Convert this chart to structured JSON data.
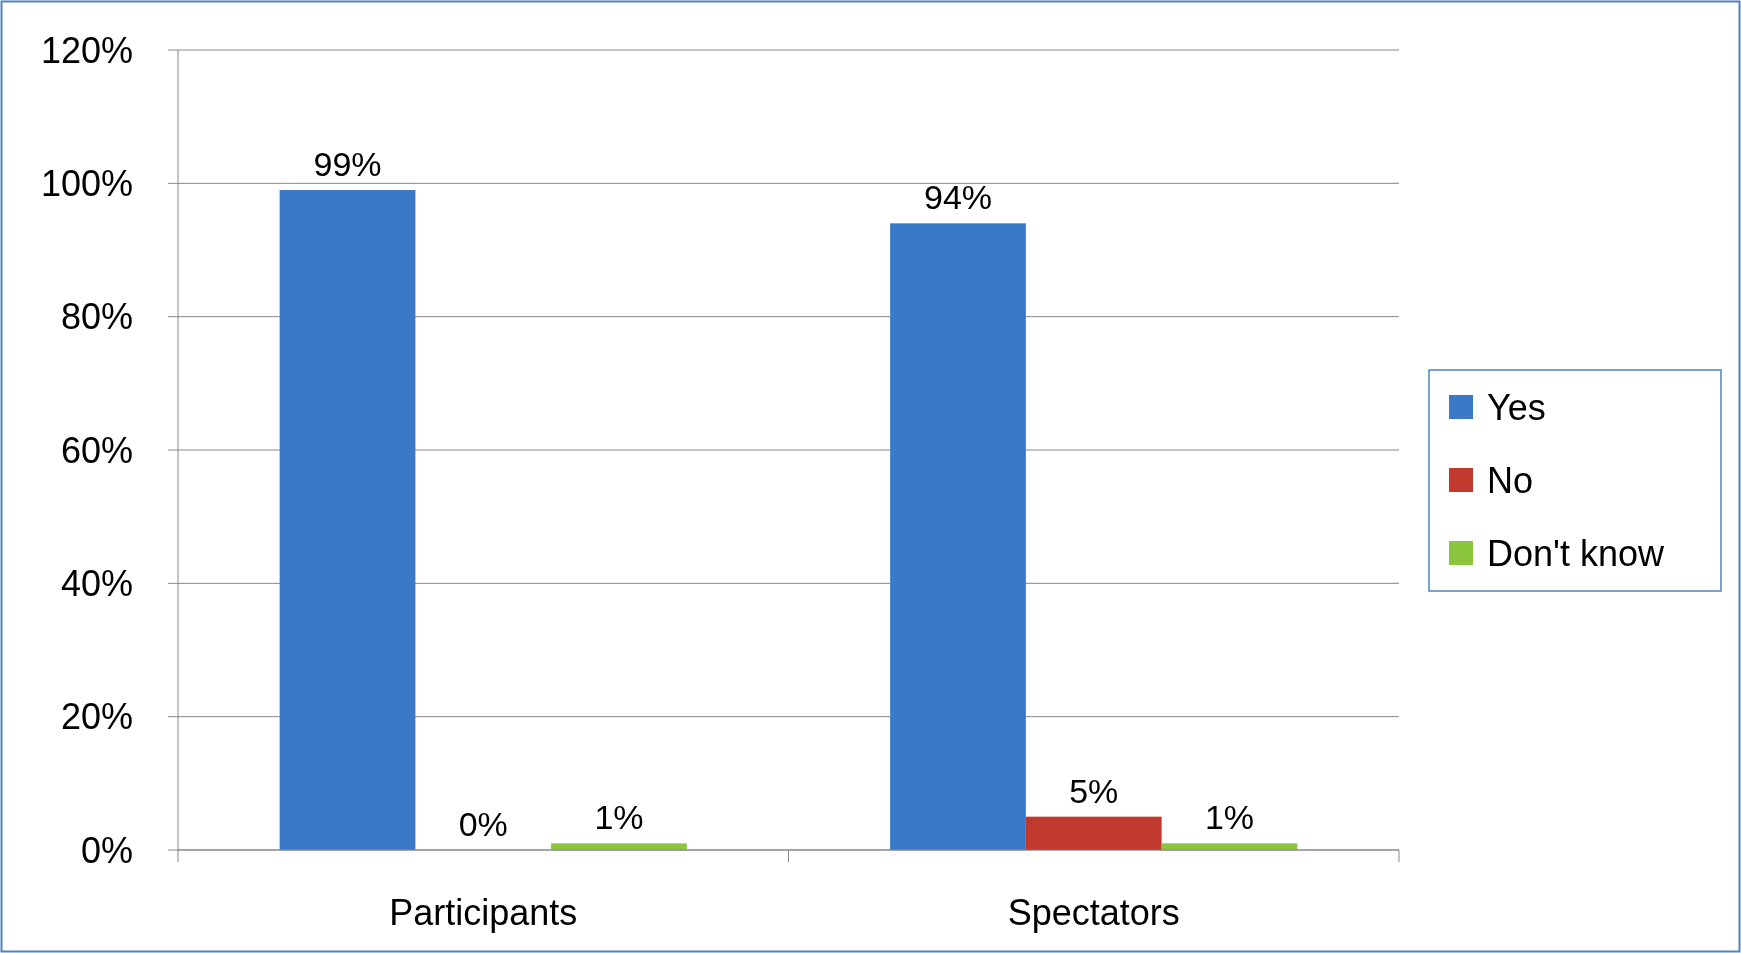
{
  "chart_data": {
    "type": "bar",
    "categories": [
      "Participants",
      "Spectators"
    ],
    "series": [
      {
        "name": "Yes",
        "color": "#3a78c8",
        "values": [
          99,
          94
        ],
        "value_labels": [
          "99%",
          "94%"
        ]
      },
      {
        "name": "No",
        "color": "#c0392f",
        "values": [
          0,
          5
        ],
        "value_labels": [
          "0%",
          "5%"
        ]
      },
      {
        "name": "Don't know",
        "color": "#8cc63e",
        "values": [
          1,
          1
        ],
        "value_labels": [
          "1%",
          "1%"
        ]
      }
    ],
    "ylim": [
      0,
      120
    ],
    "yticks": [
      {
        "value": 0,
        "label": "0%"
      },
      {
        "value": 20,
        "label": "20%"
      },
      {
        "value": 40,
        "label": "40%"
      },
      {
        "value": 60,
        "label": "60%"
      },
      {
        "value": 80,
        "label": "80%"
      },
      {
        "value": 100,
        "label": "100%"
      },
      {
        "value": 120,
        "label": "120%"
      }
    ],
    "grid": "y",
    "legend": "right"
  }
}
